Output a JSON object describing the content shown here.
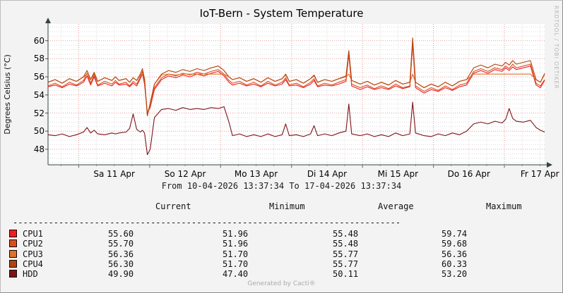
{
  "watermark": "RRDTOOL / TOBI OETIKER",
  "footer": "Generated by Cacti®",
  "chart_data": {
    "type": "line",
    "title": "IoT-Bern - System Temperature",
    "ylabel": "Degrees Celsius (°C)",
    "x_range_label": "From 10-04-2026 13:37:34 To 17-04-2026 13:37:34",
    "ylim": [
      46.3,
      61.8
    ],
    "y_major_ticks": [
      48,
      50,
      52,
      54,
      56,
      58,
      60
    ],
    "x_day_labels": [
      "Sa 11 Apr",
      "So 12 Apr",
      "Mo 13 Apr",
      "Di 14 Apr",
      "Mi 15 Apr",
      "Do 16 Apr",
      "Fr 17 Apr"
    ],
    "x_days_total": 7,
    "x_first_midnight": 0.4326,
    "x_first_minor": 0.1826,
    "grid_major_color": "#e59a9a",
    "grid_minor_color": "#dcdcdc",
    "axis_color": "#31473d",
    "plot_bg": "#ffffff",
    "legend_position": "bottom-table",
    "grid": true,
    "x": [
      0.0,
      0.1,
      0.2,
      0.3,
      0.4,
      0.5,
      0.55,
      0.6,
      0.65,
      0.7,
      0.8,
      0.9,
      0.95,
      1.0,
      1.1,
      1.15,
      1.2,
      1.25,
      1.3,
      1.33,
      1.36,
      1.4,
      1.44,
      1.5,
      1.6,
      1.7,
      1.8,
      1.9,
      2.0,
      2.1,
      2.2,
      2.3,
      2.4,
      2.48,
      2.55,
      2.6,
      2.7,
      2.8,
      2.9,
      3.0,
      3.1,
      3.2,
      3.3,
      3.35,
      3.4,
      3.5,
      3.6,
      3.7,
      3.75,
      3.8,
      3.9,
      4.0,
      4.1,
      4.2,
      4.24,
      4.28,
      4.4,
      4.5,
      4.6,
      4.7,
      4.8,
      4.9,
      5.0,
      5.1,
      5.14,
      5.18,
      5.3,
      5.4,
      5.5,
      5.6,
      5.7,
      5.8,
      5.9,
      6.0,
      6.1,
      6.2,
      6.3,
      6.4,
      6.45,
      6.5,
      6.55,
      6.6,
      6.7,
      6.8,
      6.88,
      6.94,
      7.0
    ],
    "series": [
      {
        "name": "CPU1",
        "color": "#ee1e1e",
        "values": [
          54.9,
          55.1,
          54.8,
          55.2,
          55.0,
          55.4,
          56.1,
          55.1,
          56.0,
          55.0,
          55.3,
          55.0,
          55.4,
          55.1,
          55.2,
          54.9,
          55.3,
          55.0,
          55.8,
          56.3,
          55.2,
          52.0,
          52.6,
          54.6,
          55.7,
          56.1,
          55.9,
          56.2,
          56.0,
          56.3,
          56.1,
          56.4,
          56.6,
          56.1,
          55.4,
          55.1,
          55.3,
          55.0,
          55.2,
          54.9,
          55.3,
          55.0,
          55.2,
          55.7,
          55.0,
          55.1,
          54.8,
          55.2,
          55.6,
          54.9,
          55.1,
          55.0,
          55.2,
          55.5,
          58.5,
          55.0,
          54.6,
          54.9,
          54.6,
          54.8,
          54.6,
          55.0,
          54.7,
          54.9,
          59.7,
          54.8,
          54.2,
          54.6,
          54.4,
          54.8,
          54.5,
          54.9,
          55.1,
          56.4,
          56.7,
          56.4,
          56.8,
          56.6,
          57.0,
          56.7,
          57.1,
          56.8,
          57.0,
          57.2,
          55.1,
          54.8,
          55.6
        ]
      },
      {
        "name": "CPU2",
        "color": "#d94e1f",
        "values": [
          55.0,
          55.3,
          54.9,
          55.4,
          55.1,
          55.6,
          56.4,
          55.3,
          56.2,
          55.1,
          55.5,
          55.2,
          55.6,
          55.2,
          55.4,
          55.0,
          55.5,
          55.2,
          56.0,
          56.6,
          55.4,
          52.0,
          52.8,
          54.8,
          55.9,
          56.3,
          56.1,
          56.4,
          56.2,
          56.5,
          56.3,
          56.6,
          56.8,
          56.3,
          55.6,
          55.3,
          55.5,
          55.1,
          55.4,
          55.0,
          55.5,
          55.1,
          55.4,
          55.9,
          55.1,
          55.3,
          54.9,
          55.4,
          55.8,
          55.0,
          55.3,
          55.1,
          55.4,
          55.7,
          58.7,
          55.2,
          54.8,
          55.1,
          54.7,
          55.0,
          54.7,
          55.2,
          54.8,
          55.0,
          59.7,
          55.0,
          54.4,
          54.8,
          54.5,
          55.0,
          54.6,
          55.1,
          55.3,
          56.6,
          56.9,
          56.6,
          57.0,
          56.8,
          57.2,
          56.9,
          57.4,
          57.0,
          57.2,
          57.4,
          55.3,
          55.0,
          55.7
        ]
      },
      {
        "name": "CPU3",
        "color": "#e0702a",
        "values": [
          55.4,
          55.7,
          55.3,
          55.8,
          55.5,
          56.0,
          56.3,
          55.7,
          56.3,
          55.5,
          55.9,
          55.6,
          56.0,
          55.6,
          55.8,
          55.4,
          55.9,
          55.6,
          56.2,
          56.3,
          55.8,
          51.7,
          53.0,
          55.2,
          56.2,
          56.3,
          56.2,
          56.3,
          56.3,
          56.3,
          56.3,
          56.3,
          56.3,
          56.3,
          56.0,
          55.7,
          55.9,
          55.5,
          55.8,
          55.4,
          55.9,
          55.5,
          55.8,
          56.2,
          55.5,
          55.7,
          55.3,
          55.8,
          56.1,
          55.4,
          55.7,
          55.5,
          55.8,
          56.0,
          56.3,
          55.6,
          55.2,
          55.5,
          55.1,
          55.4,
          55.1,
          55.6,
          55.2,
          55.4,
          56.3,
          55.4,
          54.8,
          55.2,
          54.9,
          55.4,
          55.0,
          55.5,
          55.7,
          56.3,
          56.3,
          56.3,
          56.3,
          56.3,
          56.3,
          56.3,
          56.3,
          56.3,
          56.3,
          56.3,
          55.7,
          55.4,
          56.4
        ]
      },
      {
        "name": "CPU4",
        "color": "#b2430e",
        "values": [
          55.4,
          55.7,
          55.3,
          55.8,
          55.5,
          56.0,
          56.7,
          55.7,
          56.5,
          55.5,
          55.9,
          55.6,
          56.0,
          55.6,
          55.8,
          55.4,
          55.9,
          55.6,
          56.3,
          56.9,
          55.8,
          51.7,
          53.1,
          55.2,
          56.3,
          56.7,
          56.5,
          56.8,
          56.6,
          56.9,
          56.7,
          57.0,
          57.2,
          56.7,
          56.0,
          55.7,
          55.9,
          55.5,
          55.8,
          55.4,
          55.9,
          55.5,
          55.8,
          56.3,
          55.5,
          55.7,
          55.3,
          55.8,
          56.2,
          55.4,
          55.7,
          55.5,
          55.8,
          56.1,
          58.9,
          55.6,
          55.2,
          55.5,
          55.1,
          55.4,
          55.1,
          55.6,
          55.2,
          55.4,
          60.3,
          55.4,
          54.8,
          55.2,
          54.9,
          55.4,
          55.0,
          55.5,
          55.7,
          57.0,
          57.3,
          57.0,
          57.4,
          57.2,
          57.6,
          57.3,
          57.8,
          57.4,
          57.6,
          57.8,
          55.7,
          55.4,
          56.3
        ]
      },
      {
        "name": "HDD",
        "color": "#7d1318",
        "values": [
          49.6,
          49.5,
          49.7,
          49.4,
          49.6,
          49.9,
          50.4,
          49.8,
          50.1,
          49.7,
          49.6,
          49.8,
          49.7,
          49.8,
          49.9,
          50.3,
          51.9,
          50.2,
          49.9,
          50.1,
          49.8,
          47.4,
          48.0,
          51.5,
          52.4,
          52.5,
          52.3,
          52.6,
          52.4,
          52.5,
          52.4,
          52.6,
          52.5,
          52.7,
          51.0,
          49.5,
          49.7,
          49.4,
          49.6,
          49.4,
          49.7,
          49.4,
          49.6,
          50.8,
          49.5,
          49.6,
          49.4,
          49.7,
          50.6,
          49.5,
          49.7,
          49.5,
          49.8,
          50.0,
          53.0,
          49.7,
          49.5,
          49.7,
          49.4,
          49.6,
          49.4,
          49.8,
          49.5,
          49.7,
          53.2,
          49.8,
          49.5,
          49.4,
          49.7,
          49.5,
          49.8,
          49.6,
          50.0,
          50.8,
          51.0,
          50.8,
          51.1,
          50.9,
          51.3,
          52.5,
          51.4,
          51.1,
          51.0,
          51.2,
          50.4,
          50.1,
          49.9
        ]
      }
    ]
  },
  "legend_table": {
    "headers": [
      "Current",
      "Minimum",
      "Average",
      "Maximum"
    ],
    "separator": "----------------------------------------------------------------------------",
    "rows": [
      {
        "name": "CPU1",
        "color": "#ee1e1e",
        "current": "55.60",
        "minimum": "51.96",
        "average": "55.48",
        "maximum": "59.74"
      },
      {
        "name": "CPU2",
        "color": "#d94e1f",
        "current": "55.70",
        "minimum": "51.96",
        "average": "55.48",
        "maximum": "59.68"
      },
      {
        "name": "CPU3",
        "color": "#e0702a",
        "current": "56.36",
        "minimum": "51.70",
        "average": "55.77",
        "maximum": "56.36"
      },
      {
        "name": "CPU4",
        "color": "#b2430e",
        "current": "56.30",
        "minimum": "51.70",
        "average": "55.77",
        "maximum": "60.33"
      },
      {
        "name": "HDD",
        "color": "#7d1318",
        "current": "49.90",
        "minimum": "47.40",
        "average": "50.11",
        "maximum": "53.20"
      }
    ]
  }
}
